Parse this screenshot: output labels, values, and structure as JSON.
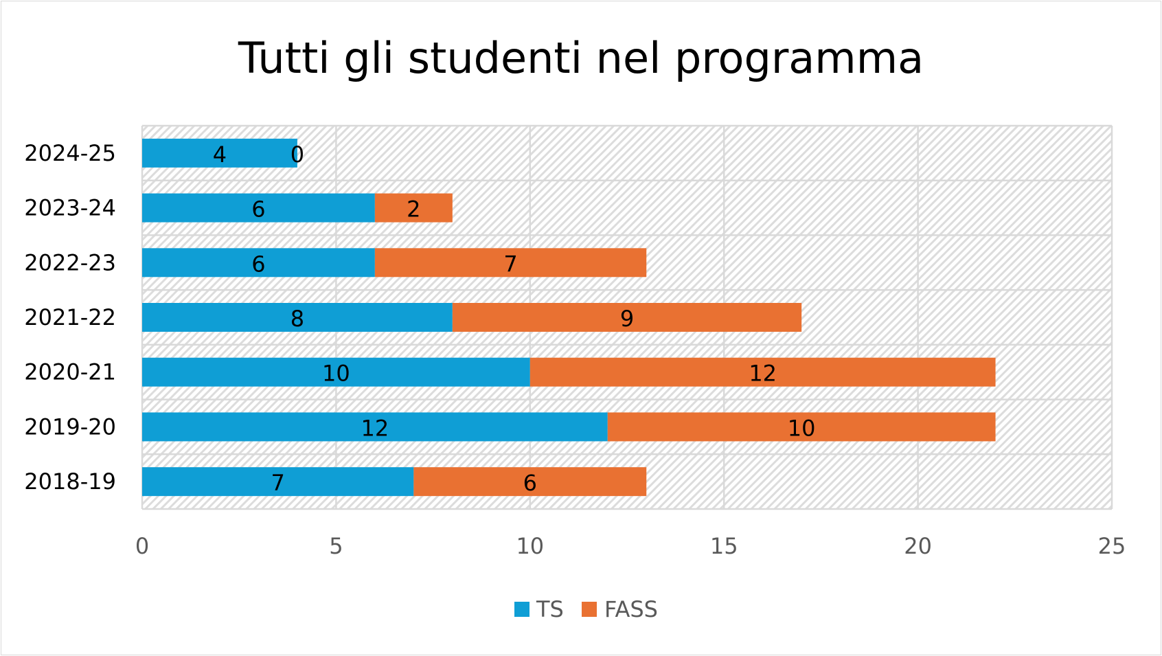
{
  "chart_data": {
    "type": "bar",
    "orientation": "horizontal",
    "stacked": true,
    "title": "Tutti gli studenti nel programma",
    "categories": [
      "2018-19",
      "2019-20",
      "2020-21",
      "2021-22",
      "2022-23",
      "2023-24",
      "2024-25"
    ],
    "series": [
      {
        "name": "TS",
        "color": "#0f9ed5",
        "values": [
          7,
          12,
          10,
          8,
          6,
          6,
          4
        ]
      },
      {
        "name": "FASS",
        "color": "#e97132",
        "values": [
          6,
          10,
          12,
          9,
          7,
          2,
          0
        ]
      }
    ],
    "xlim": [
      0,
      25
    ],
    "xticks": [
      "0",
      "5",
      "10",
      "15",
      "20",
      "25"
    ],
    "grid": true,
    "legend": "bottom",
    "data_labels": true,
    "background": "diagonal-hatch"
  }
}
